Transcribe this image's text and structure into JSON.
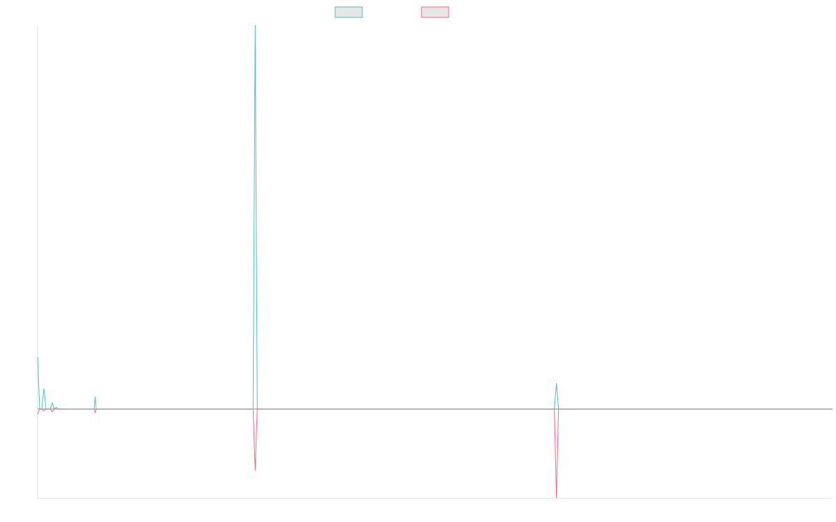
{
  "chart_data": {
    "type": "line",
    "title": "",
    "xlabel": "",
    "ylabel": "",
    "grid": false,
    "legend_position": "top-center",
    "x": [
      0,
      1,
      2,
      3,
      4,
      5,
      6,
      7,
      8,
      9,
      10,
      11,
      12,
      13,
      14,
      15,
      16,
      17,
      18,
      19,
      20,
      21,
      22,
      23,
      24,
      25,
      26,
      27,
      28,
      29,
      30,
      31,
      32,
      33,
      34,
      35,
      36,
      37,
      38,
      39,
      40,
      41,
      42,
      43,
      44,
      45,
      46,
      47,
      48,
      49,
      50,
      51,
      52,
      53,
      54,
      55,
      56,
      57,
      58,
      59,
      60,
      61,
      62,
      63,
      64,
      65,
      66,
      67,
      68,
      69,
      70,
      71,
      72,
      73,
      74,
      75,
      76,
      77,
      78,
      79,
      80,
      81,
      82,
      83,
      84,
      85,
      86,
      87,
      88,
      89,
      90,
      91,
      92,
      93,
      94,
      95,
      96,
      97,
      98,
      99,
      100,
      101,
      102,
      103,
      104,
      105,
      106,
      107,
      108,
      109,
      110,
      111,
      112,
      113,
      114,
      115,
      116,
      117,
      118,
      119,
      120,
      121,
      122,
      123,
      124,
      125,
      126,
      127,
      128,
      129,
      130,
      131,
      132,
      133,
      134,
      135,
      136,
      137,
      138,
      139,
      140,
      141,
      142,
      143,
      144,
      145,
      146,
      147,
      148,
      149,
      150,
      151,
      152,
      153,
      154,
      155,
      156,
      157,
      158,
      159,
      160,
      161,
      162,
      163,
      164,
      165,
      166,
      167,
      168,
      169,
      170,
      171,
      172,
      173,
      174,
      175,
      176,
      177,
      178,
      179,
      180,
      181,
      182,
      183,
      184,
      185,
      186,
      187,
      188,
      189,
      190,
      191,
      192,
      193,
      194,
      195,
      196,
      197,
      198,
      199,
      200,
      201,
      202,
      203,
      204,
      205,
      206,
      207,
      208,
      209,
      210,
      211,
      212,
      213,
      214,
      215,
      216,
      217,
      218,
      219,
      220,
      221,
      222,
      223,
      224,
      225,
      226,
      227,
      228,
      229,
      230,
      231,
      232,
      233,
      234,
      235,
      236,
      237,
      238,
      239,
      240,
      241,
      242,
      243,
      244,
      245,
      246,
      247,
      248,
      249,
      250,
      251,
      252,
      253,
      254,
      255,
      256,
      257,
      258,
      259,
      260,
      261,
      262,
      263,
      264,
      265,
      266,
      267,
      268,
      269,
      270,
      271,
      272,
      273,
      274,
      275,
      276,
      277,
      278,
      279,
      280,
      281,
      282,
      283,
      284,
      285,
      286,
      287,
      288,
      289,
      290,
      291,
      292,
      293,
      294,
      295,
      296,
      297,
      298,
      299,
      300,
      301,
      302,
      303,
      304,
      305,
      306,
      307,
      308,
      309,
      310,
      311,
      312,
      313,
      314,
      315,
      316,
      317,
      318,
      319,
      320,
      321,
      322,
      323,
      324,
      325,
      326,
      327,
      328,
      329,
      330,
      331,
      332,
      333,
      334,
      335,
      336,
      337,
      338,
      339,
      340,
      341,
      342,
      343,
      344,
      345,
      346,
      347,
      348,
      349,
      350,
      351,
      352,
      353,
      354,
      355,
      356,
      357,
      358,
      359,
      360,
      361,
      362,
      363,
      364,
      365,
      366,
      367,
      368,
      369,
      370,
      371,
      372,
      373,
      374,
      375,
      376,
      377,
      378,
      379,
      380
    ],
    "xlim": [
      0,
      380
    ],
    "ylim": [
      -1.0,
      4.3
    ],
    "series": [
      {
        "color": "#4bc0c0",
        "points": [
          [
            0,
            0.58
          ],
          [
            1,
            0.0
          ],
          [
            2,
            0.0
          ],
          [
            3,
            0.23
          ],
          [
            4,
            0.0
          ],
          [
            5,
            0.0
          ],
          [
            6,
            0.0
          ],
          [
            7,
            0.07
          ],
          [
            8,
            0.0
          ],
          [
            9,
            0.02
          ],
          [
            10,
            0.0
          ],
          [
            27,
            0.0
          ],
          [
            27.5,
            0.14
          ],
          [
            28,
            0.0
          ],
          [
            103,
            0.0
          ],
          [
            104,
            4.3
          ],
          [
            105,
            0.0
          ],
          [
            247,
            0.0
          ],
          [
            248,
            0.29
          ],
          [
            249,
            0.0
          ],
          [
            380,
            0.0
          ]
        ]
      },
      {
        "color": "#ff6384",
        "points": [
          [
            0,
            -0.06
          ],
          [
            1,
            0.0
          ],
          [
            2,
            0.0
          ],
          [
            3,
            -0.02
          ],
          [
            4,
            0.0
          ],
          [
            5,
            0.0
          ],
          [
            6,
            0.0
          ],
          [
            7,
            -0.03
          ],
          [
            8,
            0.0
          ],
          [
            9,
            0.0
          ],
          [
            10,
            0.0
          ],
          [
            27,
            0.0
          ],
          [
            27.5,
            -0.04
          ],
          [
            28,
            0.0
          ],
          [
            103,
            0.0
          ],
          [
            104,
            -0.69
          ],
          [
            105,
            0.0
          ],
          [
            247,
            0.0
          ],
          [
            248,
            -1.0
          ],
          [
            249,
            0.0
          ],
          [
            380,
            0.0
          ]
        ]
      }
    ]
  },
  "legend": {
    "items": [
      {
        "label": "",
        "border_color": "#4bc0c0",
        "fill_color": "#e6e6e6"
      },
      {
        "label": "",
        "border_color": "#ff6384",
        "fill_color": "#e6e6e6"
      }
    ]
  },
  "colors": {
    "zero_line": "#7f9ea6",
    "axis": "#e0e0e0"
  }
}
